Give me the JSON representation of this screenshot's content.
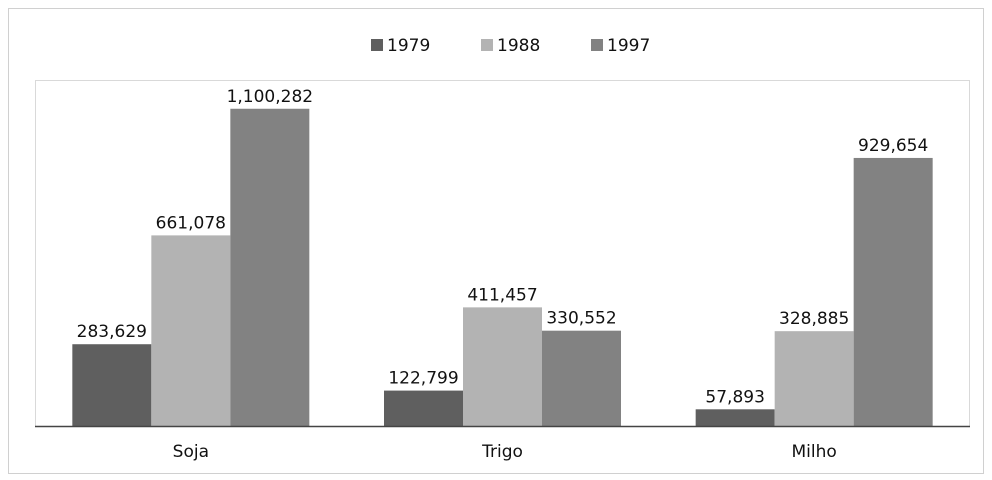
{
  "chart_data": {
    "type": "bar",
    "categories": [
      "Soja",
      "Trigo",
      "Milho"
    ],
    "series": [
      {
        "name": "1979",
        "color": "#5f5f5f",
        "values": [
          283629,
          122799,
          57893
        ],
        "value_labels": [
          "283,629",
          "122,799",
          "57,893"
        ]
      },
      {
        "name": "1988",
        "color": "#b3b3b3",
        "values": [
          661078,
          411457,
          328885
        ],
        "value_labels": [
          "661,078",
          "411,457",
          "328,885"
        ]
      },
      {
        "name": "1997",
        "color": "#828282",
        "values": [
          1100282,
          330552,
          929654
        ],
        "value_labels": [
          "1,100,282",
          "330,552",
          "929,654"
        ]
      }
    ],
    "ylim": [
      0,
      1200000
    ],
    "legend": "top"
  }
}
